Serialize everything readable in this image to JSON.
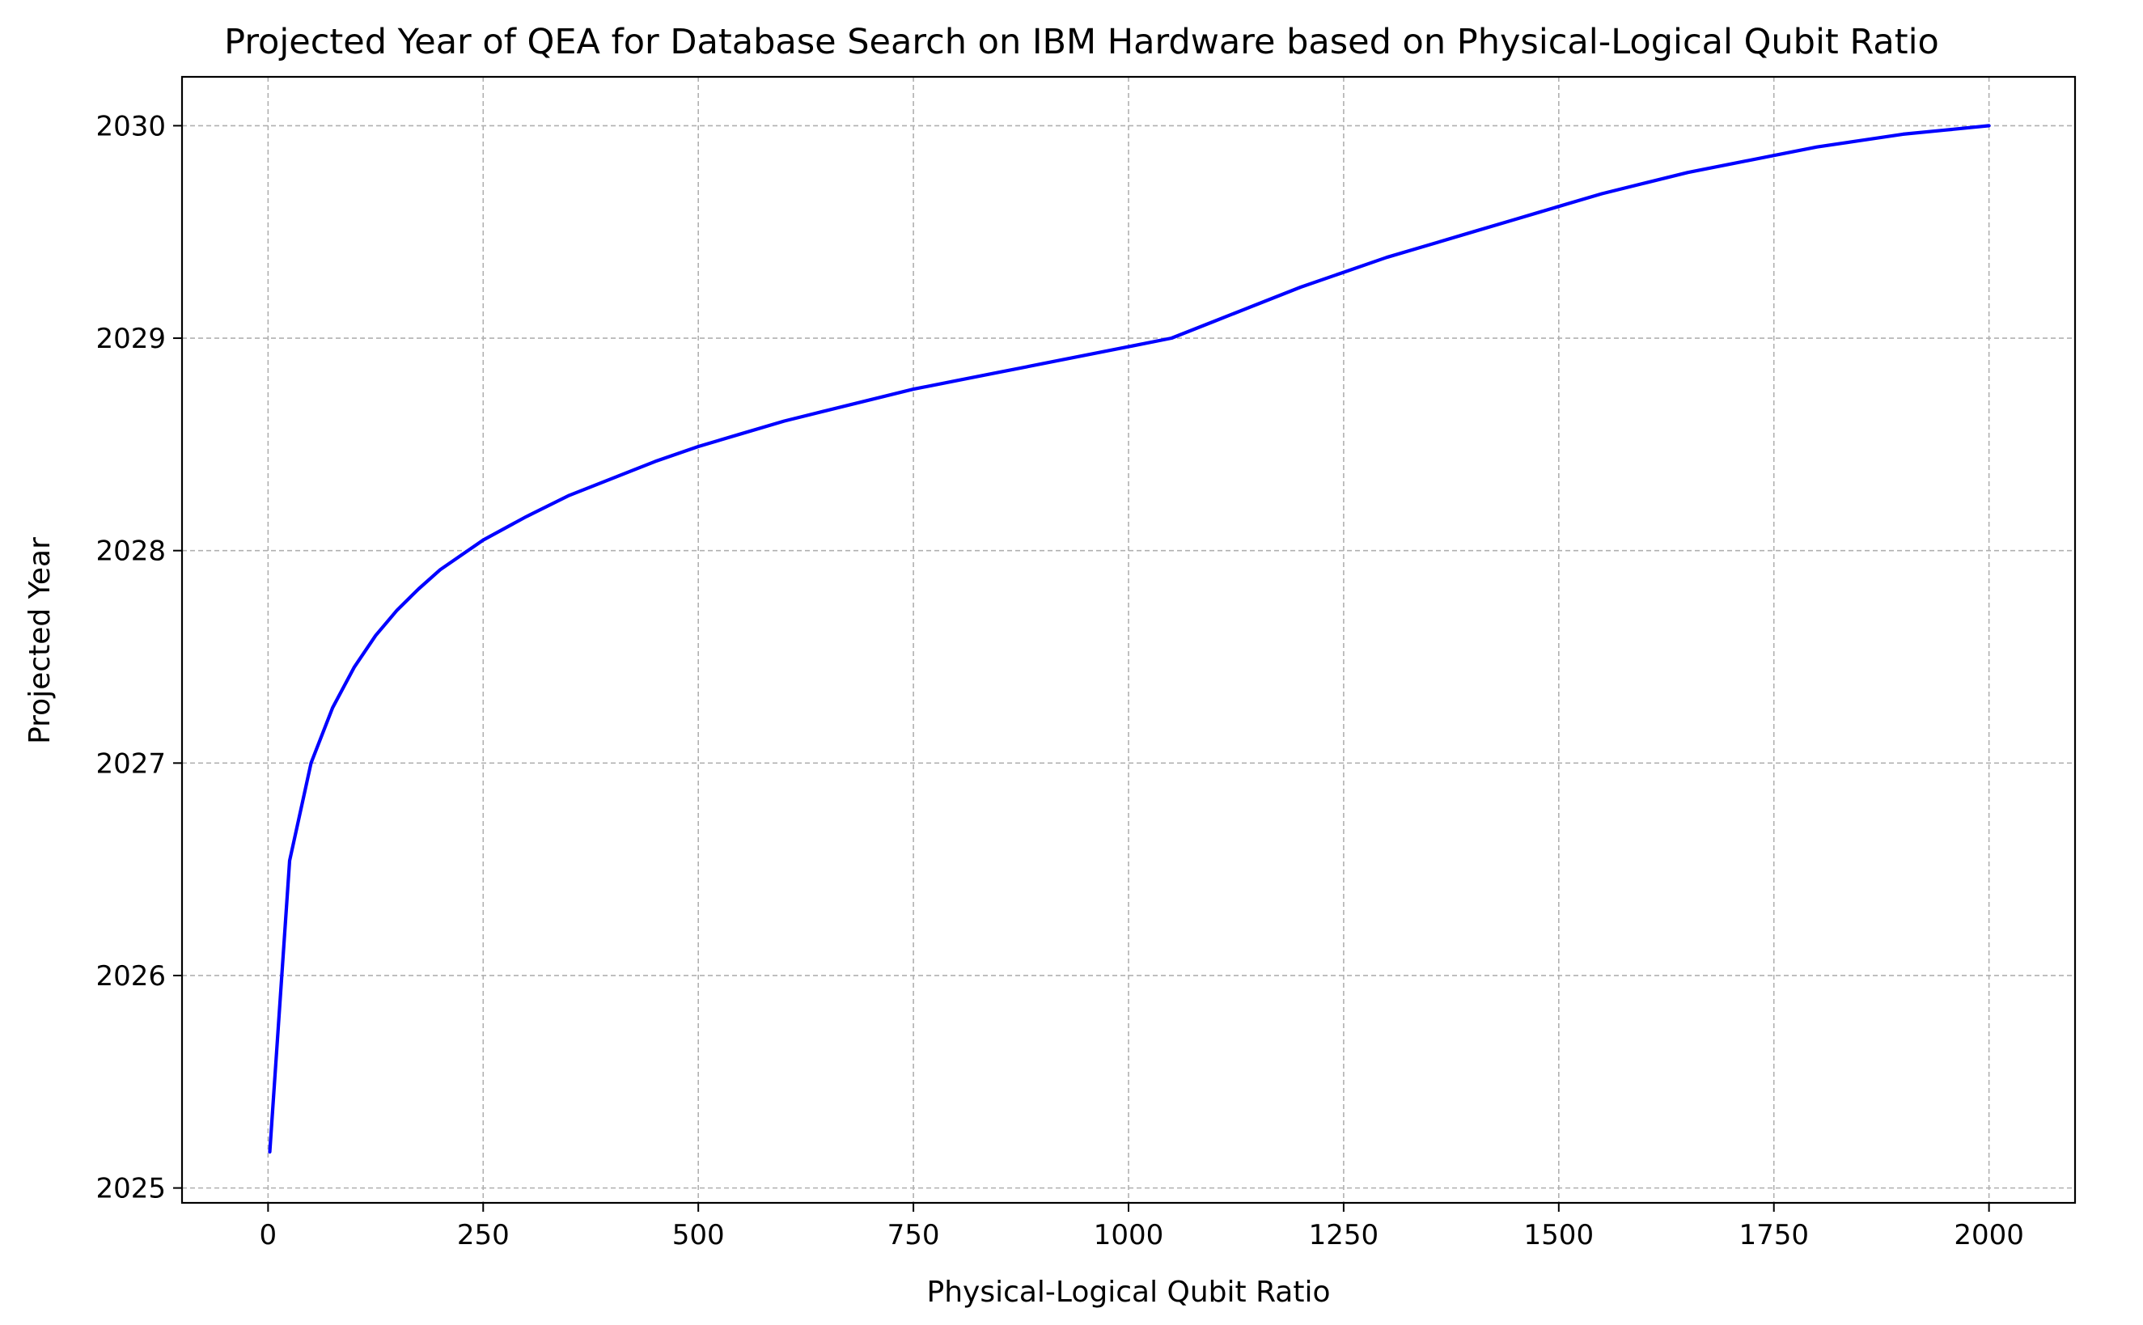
{
  "chart_data": {
    "type": "line",
    "title": "Projected Year of QEA for Database Search on IBM Hardware based on Physical-Logical Qubit Ratio",
    "xlabel": "Physical-Logical Qubit Ratio",
    "ylabel": "Projected Year",
    "xlim": [
      -100,
      2100
    ],
    "ylim": [
      2024.93,
      2030.23
    ],
    "xticks": [
      0,
      250,
      500,
      750,
      1000,
      1250,
      1500,
      1750,
      2000
    ],
    "xtick_labels": [
      "0",
      "250",
      "500",
      "750",
      "1000",
      "1250",
      "1500",
      "1750",
      "2000"
    ],
    "yticks": [
      2025,
      2026,
      2027,
      2028,
      2029,
      2030
    ],
    "ytick_labels": [
      "2025",
      "2026",
      "2027",
      "2028",
      "2029",
      "2030"
    ],
    "grid": true,
    "series": [
      {
        "color": "#0000ff",
        "x": [
          2,
          25,
          50,
          75,
          100,
          125,
          150,
          175,
          200,
          250,
          300,
          350,
          400,
          450,
          500,
          550,
          600,
          650,
          700,
          750,
          800,
          850,
          900,
          950,
          1000,
          1050,
          1075,
          1100,
          1150,
          1200,
          1250,
          1300,
          1350,
          1400,
          1450,
          1500,
          1550,
          1600,
          1650,
          1700,
          1750,
          1800,
          1850,
          1900,
          1950,
          2000
        ],
        "y": [
          2025.17,
          2026.54,
          2027.0,
          2027.26,
          2027.45,
          2027.6,
          2027.72,
          2027.82,
          2027.91,
          2028.05,
          2028.16,
          2028.26,
          2028.34,
          2028.42,
          2028.49,
          2028.55,
          2028.61,
          2028.66,
          2028.71,
          2028.76,
          2028.8,
          2028.84,
          2028.88,
          2028.92,
          2028.96,
          2029.0,
          2029.04,
          2029.08,
          2029.16,
          2029.24,
          2029.31,
          2029.38,
          2029.44,
          2029.5,
          2029.56,
          2029.62,
          2029.68,
          2029.73,
          2029.78,
          2029.82,
          2029.86,
          2029.9,
          2029.93,
          2029.96,
          2029.98,
          2030.0
        ]
      }
    ]
  }
}
